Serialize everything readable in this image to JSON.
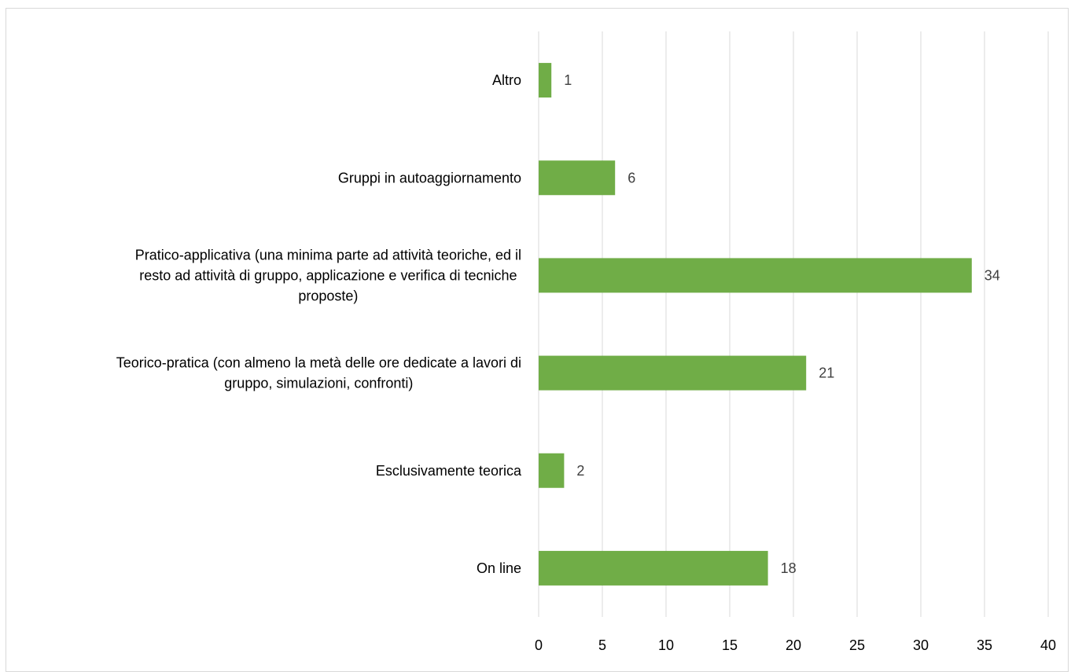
{
  "chart_data": {
    "type": "bar",
    "orientation": "horizontal",
    "categories": [
      [
        "Altro"
      ],
      [
        "Gruppi in autoaggiornamento"
      ],
      [
        "Pratico-applicativa (una minima parte ad attività teoriche, ed il",
        "resto ad attività di gruppo, applicazione e verifica di tecniche",
        "proposte)"
      ],
      [
        "Teorico-pratica (con almeno la metà delle ore dedicate a lavori di",
        "gruppo, simulazioni, confronti)"
      ],
      [
        "Esclusivamente teorica"
      ],
      [
        "On line"
      ]
    ],
    "values": [
      1,
      6,
      34,
      21,
      2,
      18
    ],
    "data_labels": [
      "1",
      "6",
      "34",
      "21",
      "2",
      "18"
    ],
    "xlim": [
      0,
      40
    ],
    "xticks": [
      0,
      5,
      10,
      15,
      20,
      25,
      30,
      35,
      40
    ],
    "xtick_labels": [
      "0",
      "5",
      "10",
      "15",
      "20",
      "25",
      "30",
      "35",
      "40"
    ],
    "grid": "vertical",
    "bar_color": "#70ad47",
    "gridline_color": "#d9d9d9",
    "title": "",
    "xlabel": "",
    "ylabel": ""
  }
}
